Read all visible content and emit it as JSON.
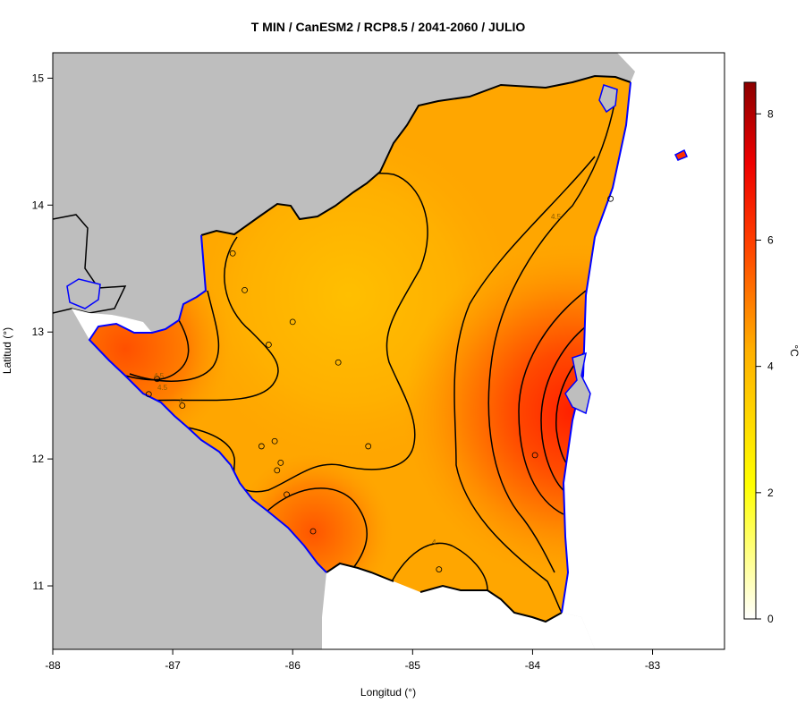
{
  "title": "T MIN / CanESM2 / RCP8.5 / 2041-2060 / JULIO",
  "axes": {
    "xlabel": "Longitud (°)",
    "ylabel": "Latitud (°)",
    "xticks": [
      "-88",
      "-87",
      "-86",
      "-85",
      "-84",
      "-83"
    ],
    "yticks": [
      "15",
      "14",
      "13",
      "12",
      "11"
    ],
    "xlim": [
      -88,
      -82.4
    ],
    "ylim": [
      10.5,
      15.2
    ]
  },
  "colorbar": {
    "unit": "°C",
    "ticks": [
      "0",
      "2",
      "4",
      "6",
      "8"
    ],
    "range": [
      0,
      8.5
    ],
    "colors": [
      "#ffffff",
      "#ffff00",
      "#ffb000",
      "#ff4000",
      "#ee0000",
      "#8b0000"
    ]
  },
  "contour_labels": [
    "4.5",
    "4.5",
    "4",
    "4",
    "4.5"
  ],
  "stations": [
    {
      "lon": -86.5,
      "lat": 13.62
    },
    {
      "lon": -86.4,
      "lat": 13.33
    },
    {
      "lon": -86.0,
      "lat": 13.08
    },
    {
      "lon": -86.2,
      "lat": 12.9
    },
    {
      "lon": -85.62,
      "lat": 12.76
    },
    {
      "lon": -87.13,
      "lat": 12.63
    },
    {
      "lon": -87.2,
      "lat": 12.51
    },
    {
      "lon": -86.92,
      "lat": 12.42
    },
    {
      "lon": -86.26,
      "lat": 12.1
    },
    {
      "lon": -86.15,
      "lat": 12.14
    },
    {
      "lon": -86.1,
      "lat": 11.97
    },
    {
      "lon": -86.13,
      "lat": 11.91
    },
    {
      "lon": -85.37,
      "lat": 12.1
    },
    {
      "lon": -86.05,
      "lat": 11.72
    },
    {
      "lon": -85.83,
      "lat": 11.43
    },
    {
      "lon": -84.78,
      "lat": 11.13
    },
    {
      "lon": -83.35,
      "lat": 14.05
    },
    {
      "lon": -83.98,
      "lat": 12.03
    }
  ],
  "colors": {
    "background": "#bebebe",
    "coastline": "#0000ff",
    "border": "#000000",
    "field_low": "#ffbd00",
    "field_mid": "#ff9a00",
    "field_high": "#ff2a00"
  }
}
